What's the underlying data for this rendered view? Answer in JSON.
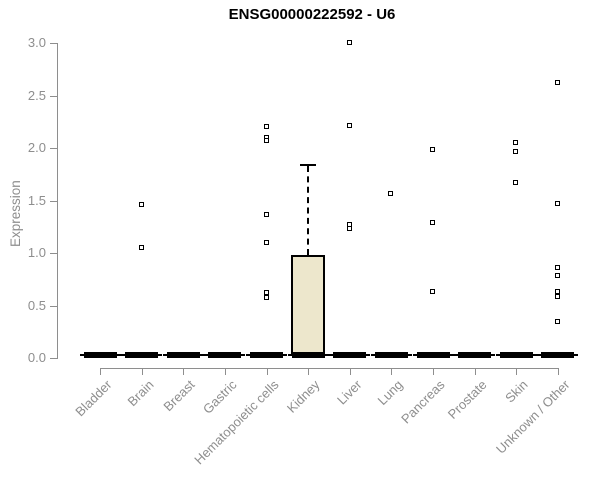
{
  "chart_data": {
    "type": "boxplot",
    "title": "ENSG00000222592 - U6",
    "ylabel": "Expression",
    "xlabel": "",
    "ylim": [
      0,
      3.0
    ],
    "yticks": [
      "0.0",
      "0.5",
      "1.0",
      "1.5",
      "2.0",
      "2.5",
      "3.0"
    ],
    "grid": false,
    "legend": "none",
    "categories": [
      "Bladder",
      "Brain",
      "Breast",
      "Gastric",
      "Hematopoietic cells",
      "Kidney",
      "Liver",
      "Lung",
      "Pancreas",
      "Prostate",
      "Skin",
      "Unknown / Other"
    ],
    "boxes": [
      {
        "category": "Bladder",
        "median": 0.03,
        "q1": 0,
        "q3": 0,
        "whisker_low": 0,
        "whisker_high": 0,
        "outliers": []
      },
      {
        "category": "Brain",
        "median": 0.03,
        "q1": 0,
        "q3": 0,
        "whisker_low": 0,
        "whisker_high": 0,
        "outliers": [
          1.46,
          1.05
        ]
      },
      {
        "category": "Breast",
        "median": 0.03,
        "q1": 0,
        "q3": 0,
        "whisker_low": 0,
        "whisker_high": 0,
        "outliers": []
      },
      {
        "category": "Gastric",
        "median": 0.03,
        "q1": 0,
        "q3": 0,
        "whisker_low": 0,
        "whisker_high": 0,
        "outliers": []
      },
      {
        "category": "Hematopoietic cells",
        "median": 0.03,
        "q1": 0,
        "q3": 0,
        "whisker_low": 0,
        "whisker_high": 0,
        "outliers": [
          2.2,
          2.1,
          2.07,
          1.36,
          1.1,
          0.62,
          0.57
        ]
      },
      {
        "category": "Kidney",
        "median": 0.03,
        "q1": 0,
        "q3": 0.96,
        "whisker_low": 0,
        "whisker_high": 1.84,
        "outliers": []
      },
      {
        "category": "Liver",
        "median": 0.03,
        "q1": 0,
        "q3": 0,
        "whisker_low": 0,
        "whisker_high": 0,
        "outliers": [
          3.0,
          2.21,
          1.27,
          1.23
        ]
      },
      {
        "category": "Lung",
        "median": 0.03,
        "q1": 0,
        "q3": 0,
        "whisker_low": 0,
        "whisker_high": 0,
        "outliers": [
          1.56
        ]
      },
      {
        "category": "Pancreas",
        "median": 0.03,
        "q1": 0,
        "q3": 0,
        "whisker_low": 0,
        "whisker_high": 0,
        "outliers": [
          1.98,
          1.29,
          0.63
        ]
      },
      {
        "category": "Prostate",
        "median": 0.03,
        "q1": 0,
        "q3": 0,
        "whisker_low": 0,
        "whisker_high": 0,
        "outliers": []
      },
      {
        "category": "Skin",
        "median": 0.03,
        "q1": 0,
        "q3": 0,
        "whisker_low": 0,
        "whisker_high": 0,
        "outliers": [
          2.05,
          1.96,
          1.67
        ]
      },
      {
        "category": "Unknown / Other",
        "median": 0.03,
        "q1": 0,
        "q3": 0,
        "whisker_low": 0,
        "whisker_high": 0,
        "outliers": [
          2.62,
          1.47,
          0.86,
          0.78,
          0.63,
          0.58,
          0.34
        ]
      }
    ],
    "colors": {
      "box_fill": "#ede7cc",
      "box_border": "#000000",
      "marker": "#000000",
      "axis": "#8e8e8e",
      "tick_text": "#8e8e8e",
      "title_text": "#000000"
    }
  }
}
